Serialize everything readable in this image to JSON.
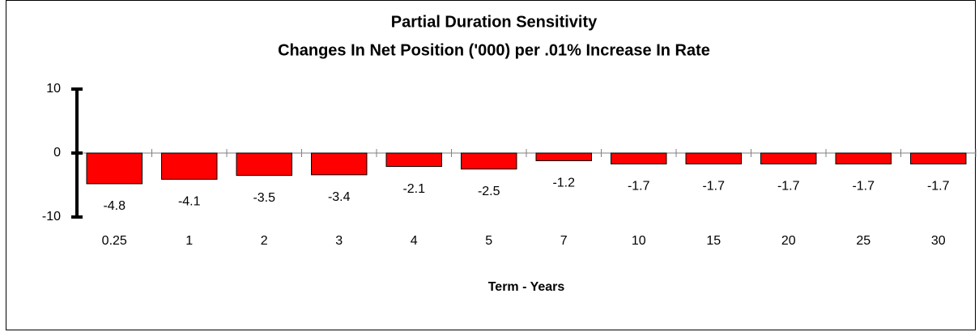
{
  "chart_data": {
    "type": "bar",
    "title": "Partial Duration Sensitivity",
    "subtitle": "Changes In Net Position ('000) per .01% Increase In Rate",
    "x_label": "Term - Years",
    "categories": [
      "0.25",
      "1",
      "2",
      "3",
      "4",
      "5",
      "7",
      "10",
      "15",
      "20",
      "25",
      "30"
    ],
    "values": [
      -4.8,
      -4.1,
      -3.5,
      -3.4,
      -2.1,
      -2.5,
      -1.2,
      -1.7,
      -1.7,
      -1.7,
      -1.7,
      -1.7
    ],
    "color": "#ff0000",
    "ylim": [
      -10,
      10
    ],
    "yticks": [
      -10,
      0,
      10
    ]
  }
}
